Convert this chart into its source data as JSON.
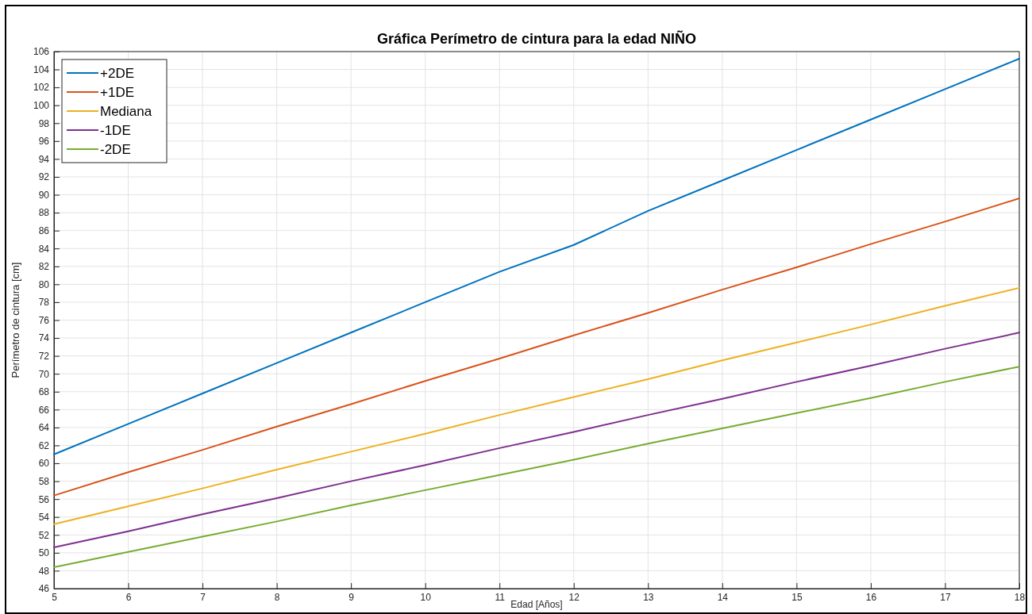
{
  "chart_data": {
    "type": "line",
    "title": "Gráfica Perímetro de cintura para la edad NIÑO",
    "xlabel": "Edad [Años]",
    "ylabel": "Perímetro de cintura [cm]",
    "x": [
      5,
      6,
      7,
      8,
      9,
      10,
      11,
      12,
      13,
      14,
      15,
      16,
      17,
      18
    ],
    "series": [
      {
        "name": "+2DE",
        "color": "#0072bd",
        "values": [
          61,
          64.4,
          67.8,
          71.2,
          74.6,
          78,
          81.4,
          84.4,
          88.2,
          91.6,
          95,
          98.4,
          101.8,
          105.2
        ]
      },
      {
        "name": "+1DE",
        "color": "#d95319",
        "values": [
          56.4,
          59,
          61.5,
          64.1,
          66.6,
          69.2,
          71.7,
          74.3,
          76.8,
          79.4,
          81.9,
          84.5,
          87,
          89.6
        ]
      },
      {
        "name": "Mediana",
        "color": "#edb120",
        "values": [
          53.2,
          55.2,
          57.2,
          59.3,
          61.3,
          63.3,
          65.4,
          67.4,
          69.4,
          71.5,
          73.5,
          75.5,
          77.6,
          79.6
        ]
      },
      {
        "name": "-1DE",
        "color": "#7e2f8e",
        "values": [
          50.6,
          52.4,
          54.3,
          56.1,
          58,
          59.8,
          61.7,
          63.5,
          65.4,
          67.2,
          69.1,
          70.9,
          72.8,
          74.6
        ]
      },
      {
        "name": "-2DE",
        "color": "#77ac30",
        "values": [
          48.4,
          50.1,
          51.8,
          53.5,
          55.3,
          57,
          58.7,
          60.4,
          62.2,
          63.9,
          65.6,
          67.3,
          69.1,
          70.8
        ]
      }
    ],
    "xlim": [
      5,
      18
    ],
    "xticks": [
      5,
      6,
      7,
      8,
      9,
      10,
      11,
      12,
      13,
      14,
      15,
      16,
      17,
      18
    ],
    "ylim": [
      46,
      106
    ],
    "yticks": [
      46,
      48,
      50,
      52,
      54,
      56,
      58,
      60,
      62,
      64,
      66,
      68,
      70,
      72,
      74,
      76,
      78,
      80,
      82,
      84,
      86,
      88,
      90,
      92,
      94,
      96,
      98,
      100,
      102,
      104,
      106
    ],
    "grid": true,
    "legend": "top left",
    "marker": "none",
    "line_style": "solid"
  }
}
